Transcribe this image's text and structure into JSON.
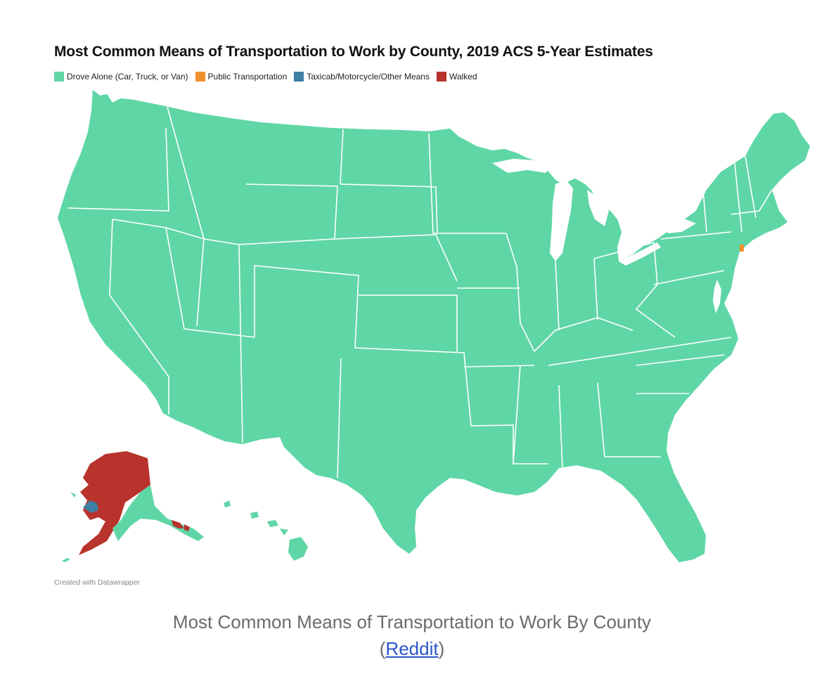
{
  "map": {
    "title": "Most Common Means of Transportation to Work by County, 2019 ACS 5-Year Estimates",
    "legend": [
      {
        "label": "Drove Alone (Car, Truck, or Van)",
        "color": "#5fd6a6"
      },
      {
        "label": "Public Transportation",
        "color": "#f0902c"
      },
      {
        "label": "Taxicab/Motorcycle/Other Means",
        "color": "#3f7fa3"
      },
      {
        "label": "Walked",
        "color": "#b8332c"
      }
    ],
    "region_colors": {
      "contiguous_us": "#5fd6a6",
      "new_york_city": "#f0902c",
      "alaska_other_means": "#3f7fa3",
      "alaska_walked": "#b8332c",
      "hawaii": "#5fd6a6"
    },
    "credit": "Created with Datawrapper"
  },
  "caption": {
    "text": "Most Common Means of Transportation to Work By County",
    "open_paren": "(",
    "link_text": "Reddit",
    "close_paren": ")"
  }
}
